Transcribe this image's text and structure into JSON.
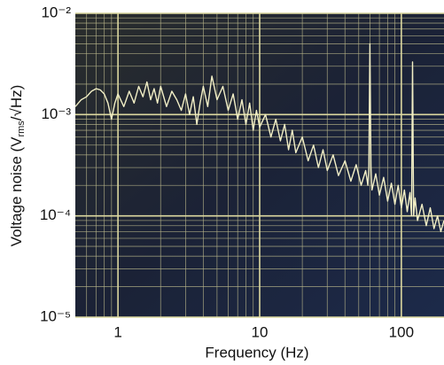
{
  "chart_data": {
    "type": "line",
    "xlabel": "Frequency (Hz)",
    "ylabel_parts": [
      "Voltage noise (V",
      "rms",
      "/√Hz)"
    ],
    "log_x": true,
    "log_y": true,
    "grid": true,
    "xlim": [
      0.5,
      200
    ],
    "ylim": [
      1e-05,
      0.01
    ],
    "xticks": [
      1,
      10,
      100
    ],
    "yticks": [
      {
        "value": 1e-05,
        "label": "10⁻⁵"
      },
      {
        "value": 0.0001,
        "label": "10⁻⁴"
      },
      {
        "value": 0.001,
        "label": "10⁻³"
      },
      {
        "value": 0.01,
        "label": "10⁻²"
      }
    ],
    "xminor_ticks": [
      0.6,
      0.7,
      0.8,
      0.9,
      2,
      3,
      4,
      5,
      6,
      7,
      8,
      9,
      20,
      30,
      40,
      50,
      60,
      70,
      80,
      90
    ],
    "yminor_ticks": [
      2e-05,
      3e-05,
      4e-05,
      5e-05,
      6e-05,
      7e-05,
      8e-05,
      9e-05,
      0.0002,
      0.0003,
      0.0004,
      0.0005,
      0.0006,
      0.0007,
      0.0008,
      0.0009,
      0.002,
      0.003,
      0.004,
      0.005,
      0.006,
      0.007,
      0.008,
      0.009
    ],
    "x": [
      0.5,
      0.55,
      0.6,
      0.65,
      0.7,
      0.75,
      0.8,
      0.85,
      0.9,
      0.95,
      1.0,
      1.1,
      1.2,
      1.3,
      1.4,
      1.5,
      1.6,
      1.7,
      1.8,
      1.9,
      2.0,
      2.2,
      2.4,
      2.6,
      2.8,
      3.0,
      3.2,
      3.4,
      3.6,
      3.8,
      4.0,
      4.3,
      4.6,
      5.0,
      5.5,
      6,
      6.5,
      7,
      7.5,
      8,
      8.5,
      9,
      9.5,
      10,
      11,
      12,
      13,
      14,
      15,
      16,
      17,
      18,
      20,
      22,
      24,
      26,
      28,
      30,
      33,
      36,
      40,
      44,
      48,
      52,
      56,
      58,
      59,
      60,
      61,
      62,
      66,
      70,
      75,
      80,
      85,
      90,
      95,
      100,
      105,
      110,
      115,
      118,
      120,
      122,
      125,
      130,
      140,
      150,
      160,
      170,
      180,
      190,
      200
    ],
    "series": [
      {
        "color": "#f2efc6",
        "values": [
          0.0012,
          0.0014,
          0.0015,
          0.0017,
          0.0018,
          0.00175,
          0.0016,
          0.0013,
          0.0009,
          0.0013,
          0.0016,
          0.0012,
          0.0017,
          0.0013,
          0.0019,
          0.0015,
          0.0021,
          0.0014,
          0.0018,
          0.0013,
          0.0019,
          0.0012,
          0.0017,
          0.0014,
          0.0011,
          0.0016,
          0.001,
          0.0015,
          0.0008,
          0.0013,
          0.0019,
          0.0012,
          0.0024,
          0.0014,
          0.0019,
          0.0011,
          0.0016,
          0.0009,
          0.0014,
          0.0008,
          0.0013,
          0.0007,
          0.0011,
          0.00075,
          0.001,
          0.0006,
          0.0009,
          0.00055,
          0.0008,
          0.00045,
          0.0007,
          0.00042,
          0.0006,
          0.00035,
          0.0005,
          0.0003,
          0.00045,
          0.00028,
          0.0004,
          0.00025,
          0.00035,
          0.00022,
          0.00032,
          0.0002,
          0.00028,
          0.0002,
          0.0003,
          0.005,
          0.0003,
          0.00018,
          0.00026,
          0.00016,
          0.00024,
          0.00014,
          0.00021,
          0.00013,
          0.0002,
          0.00012,
          0.00018,
          0.00011,
          0.00017,
          0.0001,
          0.0033,
          0.0001,
          0.00015,
          9e-05,
          0.00013,
          8e-05,
          0.00012,
          7.5e-05,
          0.0001,
          7e-05,
          9e-05
        ]
      }
    ]
  }
}
